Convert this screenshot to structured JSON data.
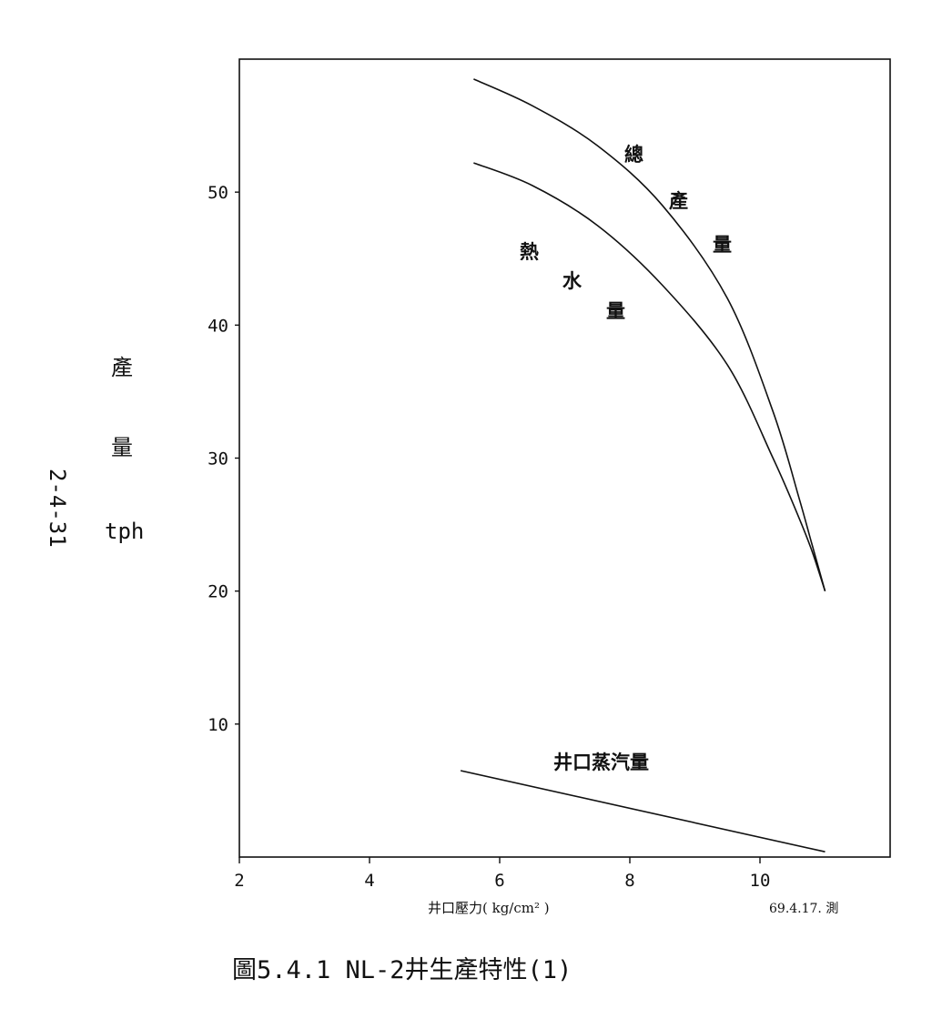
{
  "page_number": "2-4-31",
  "caption": "圖5.4.1 NL-2井生產特性(1)",
  "chart_data": {
    "type": "line",
    "xlabel": "井口壓力( kg/cm² )",
    "ylabel_chars": [
      "產",
      "量"
    ],
    "ylabel_unit": "tph",
    "annotation": "69.4.17. 測",
    "xlim": [
      2,
      12
    ],
    "ylim": [
      0,
      60
    ],
    "x_ticks": [
      2,
      4,
      6,
      8,
      10
    ],
    "y_ticks": [
      10,
      20,
      30,
      40,
      50
    ],
    "grid": false,
    "series": [
      {
        "name": "總產量",
        "label_chars": [
          "總",
          "產",
          "量"
        ],
        "points": [
          [
            5.6,
            58.5
          ],
          [
            6.5,
            56.5
          ],
          [
            7.5,
            53.5
          ],
          [
            8.5,
            49.0
          ],
          [
            9.5,
            42.0
          ],
          [
            10.2,
            33.5
          ],
          [
            10.6,
            27.0
          ],
          [
            10.8,
            23.5
          ],
          [
            11.0,
            20.0
          ]
        ]
      },
      {
        "name": "熱水量",
        "label_chars": [
          "熱",
          "水",
          "量"
        ],
        "points": [
          [
            5.6,
            52.2
          ],
          [
            6.5,
            50.5
          ],
          [
            7.5,
            47.5
          ],
          [
            8.5,
            43.0
          ],
          [
            9.5,
            37.0
          ],
          [
            10.2,
            30.0
          ],
          [
            10.6,
            25.5
          ],
          [
            10.8,
            23.0
          ],
          [
            11.0,
            20.0
          ]
        ]
      },
      {
        "name": "井口蒸汽量",
        "label_chars": [
          "井口蒸汽量"
        ],
        "points": [
          [
            5.4,
            6.5
          ],
          [
            11.0,
            0.4
          ]
        ]
      }
    ]
  }
}
